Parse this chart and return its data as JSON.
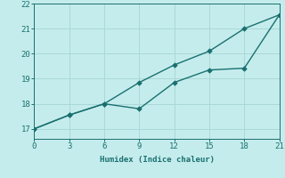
{
  "line1_x": [
    0,
    3,
    6,
    9,
    12,
    15,
    18,
    21
  ],
  "line1_y": [
    17.0,
    17.55,
    18.0,
    18.85,
    19.55,
    20.1,
    21.0,
    21.55
  ],
  "line2_x": [
    0,
    3,
    6,
    9,
    12,
    15,
    18,
    21
  ],
  "line2_y": [
    17.0,
    17.55,
    18.0,
    17.8,
    18.85,
    19.35,
    19.42,
    21.55
  ],
  "line_color": "#1a7070",
  "bg_color": "#c5ecec",
  "grid_color": "#aad8d8",
  "xlabel": "Humidex (Indice chaleur)",
  "xlim": [
    0,
    21
  ],
  "ylim": [
    16.6,
    22.0
  ],
  "xticks": [
    0,
    3,
    6,
    9,
    12,
    15,
    18,
    21
  ],
  "yticks": [
    17,
    18,
    19,
    20,
    21,
    22
  ],
  "font_color": "#1a7070",
  "linewidth": 1.0,
  "markersize": 2.8
}
